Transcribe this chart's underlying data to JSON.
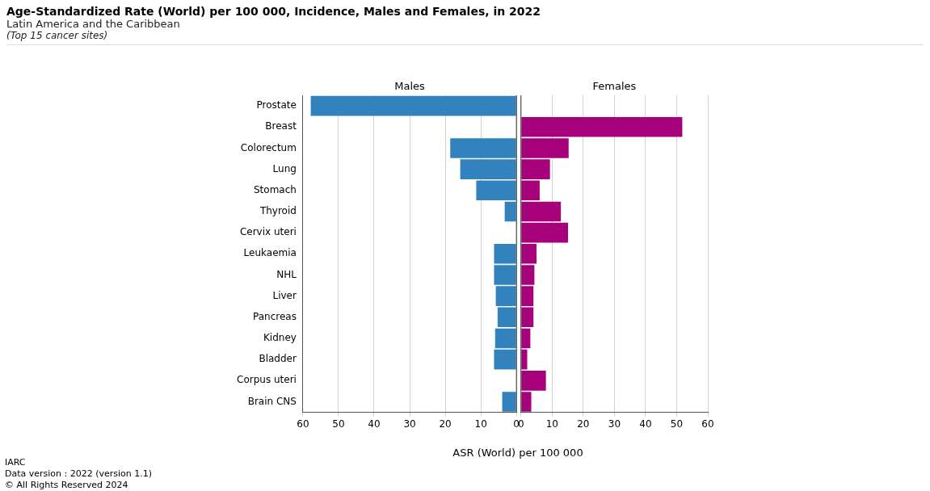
{
  "chart_data": [
    {
      "type": "bar",
      "orientation": "horizontal",
      "title": "Age-Standardized Rate (World) per 100 000, Incidence, Males and Females, in 2022",
      "subtitle": "Latin America and the Caribbean",
      "xlabel": "ASR (World) per 100 000",
      "annotations": [
        "(Top 15 cancer sites)",
        "IARC",
        "Data version : 2022 (version 1.1)",
        "© All Rights Reserved 2024"
      ],
      "categories": [
        "Prostate",
        "Breast",
        "Colorectum",
        "Lung",
        "Stomach",
        "Thyroid",
        "Cervix uteri",
        "Leukaemia",
        "NHL",
        "Liver",
        "Pancreas",
        "Kidney",
        "Bladder",
        "Corpus uteri",
        "Brain CNS"
      ],
      "series": [
        {
          "name": "Males",
          "color": "#3182bd",
          "values": [
            57.8,
            null,
            18.6,
            15.8,
            11.3,
            3.3,
            null,
            6.3,
            6.3,
            5.8,
            5.3,
            6.0,
            6.3,
            null,
            4.0
          ]
        }
      ],
      "xlim": [
        60,
        0
      ],
      "xticks": [
        60,
        50,
        40,
        30,
        20,
        10,
        0
      ],
      "grid": "x"
    },
    {
      "type": "bar",
      "orientation": "horizontal",
      "tick_labels": "x",
      "categories": [
        null,
        null,
        null,
        null,
        null,
        null,
        null,
        null,
        null,
        null,
        null,
        null,
        null,
        null,
        null
      ],
      "series": [
        {
          "name": "Females",
          "color": "#a6017a",
          "values": [
            null,
            51.8,
            15.3,
            9.3,
            6.0,
            12.8,
            15.1,
            5.0,
            4.3,
            4.0,
            4.0,
            3.0,
            2.0,
            8.0,
            3.3
          ]
        }
      ],
      "xlim": [
        0,
        60
      ],
      "xticks": [
        0,
        10,
        20,
        30,
        40,
        50,
        60
      ],
      "grid": "x"
    }
  ]
}
